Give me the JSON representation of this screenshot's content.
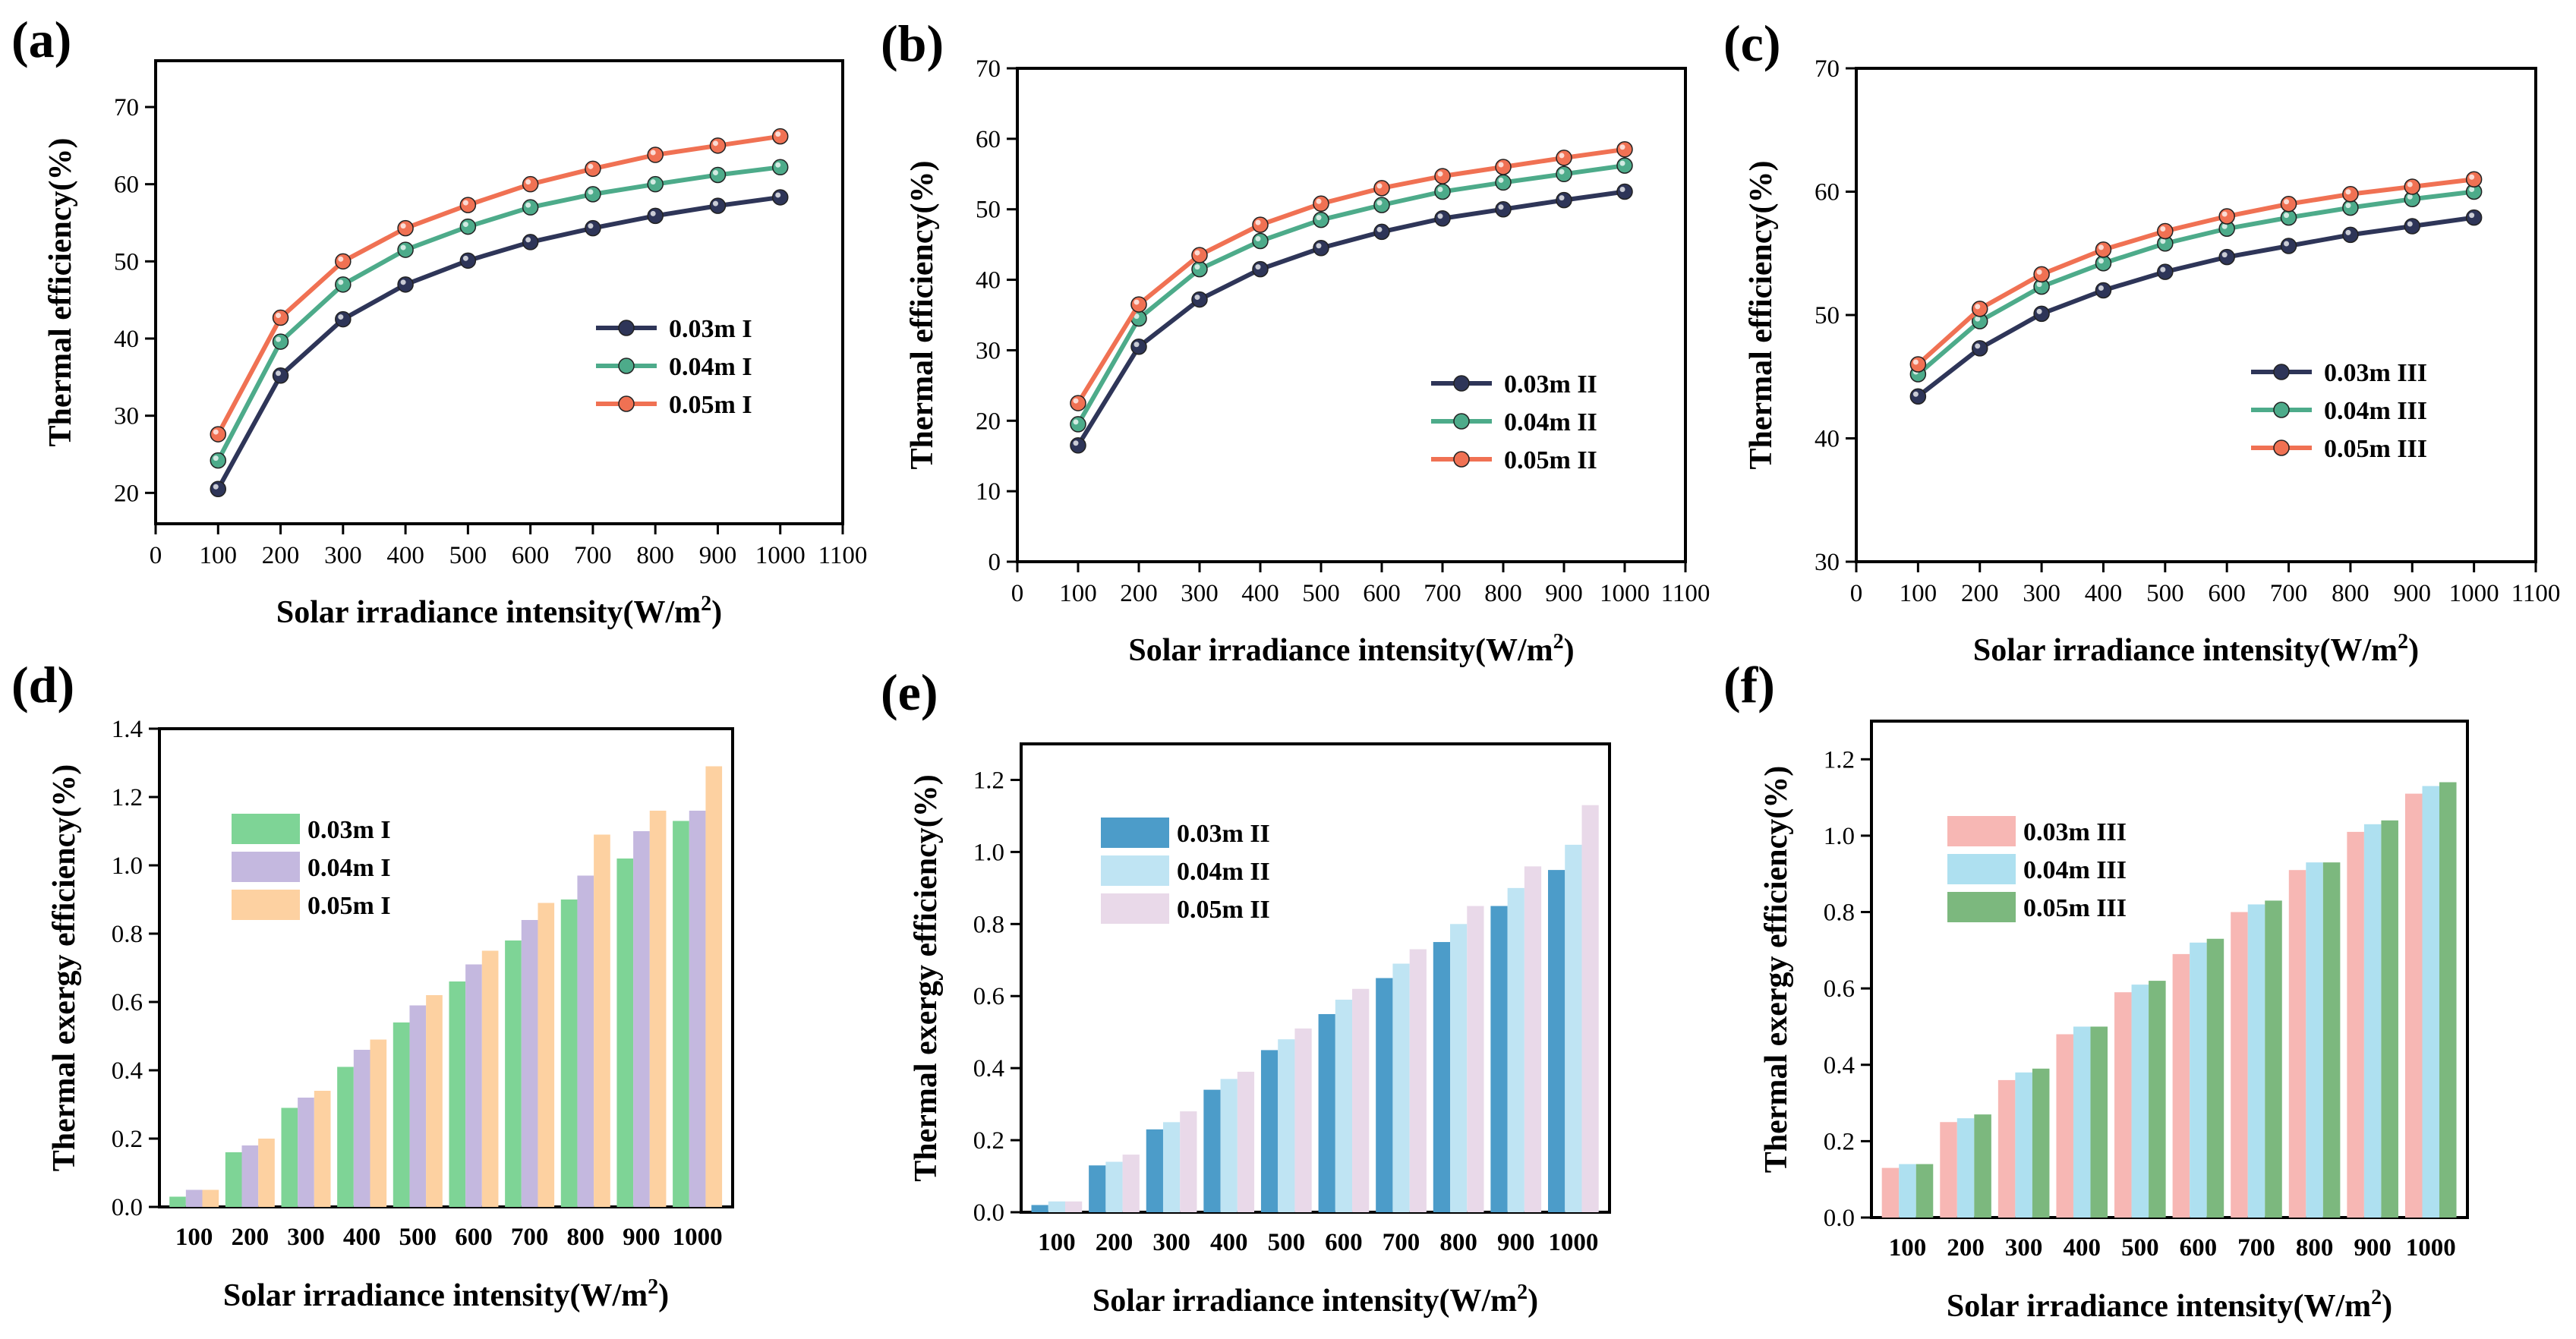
{
  "colors": {
    "line_003": "#2e3558",
    "line_004": "#4dab8a",
    "line_005": "#f07153",
    "bar_I_003": "#7ed496",
    "bar_I_004": "#c4b8df",
    "bar_I_005": "#fdd1a1",
    "bar_II_003": "#4c9cc9",
    "bar_II_004": "#bfe4f3",
    "bar_II_005": "#e9d9e9",
    "bar_III_003": "#f7b7b4",
    "bar_III_004": "#aee0f0",
    "bar_III_005": "#7cb87e"
  },
  "chart_data": [
    {
      "panel": "(a)",
      "type": "line",
      "xlabel": "Solar irradiance intensity(W/m",
      "xlabel_sup": "2",
      "xlabel_end": ")",
      "ylabel": "Thermal efficiency(%)",
      "xlim": [
        0,
        1100
      ],
      "ylim": [
        16,
        76
      ],
      "xticks": [
        0,
        100,
        200,
        300,
        400,
        500,
        600,
        700,
        800,
        900,
        1000,
        1100
      ],
      "yticks": [
        20,
        30,
        40,
        50,
        60,
        70
      ],
      "x": [
        100,
        200,
        300,
        400,
        500,
        600,
        700,
        800,
        900,
        1000
      ],
      "series": [
        {
          "name": "0.03m I",
          "color_key": "line_003",
          "values": [
            20.5,
            35.2,
            42.5,
            47.0,
            50.1,
            52.5,
            54.3,
            55.9,
            57.2,
            58.3
          ]
        },
        {
          "name": "0.04m I",
          "color_key": "line_004",
          "values": [
            24.2,
            39.6,
            47.0,
            51.5,
            54.5,
            57.0,
            58.7,
            60.0,
            61.2,
            62.2
          ]
        },
        {
          "name": "0.05m I",
          "color_key": "line_005",
          "values": [
            27.6,
            42.7,
            50.0,
            54.3,
            57.3,
            60.0,
            62.0,
            63.8,
            65.0,
            66.2
          ]
        }
      ]
    },
    {
      "panel": "(b)",
      "type": "line",
      "xlabel": "Solar irradiance intensity(W/m",
      "xlabel_sup": "2",
      "xlabel_end": ")",
      "ylabel": "Thermal efficiency(%)",
      "xlim": [
        0,
        1100
      ],
      "ylim": [
        0,
        70
      ],
      "xticks": [
        0,
        100,
        200,
        300,
        400,
        500,
        600,
        700,
        800,
        900,
        1000,
        1100
      ],
      "yticks": [
        0,
        10,
        20,
        30,
        40,
        50,
        60,
        70
      ],
      "x": [
        100,
        200,
        300,
        400,
        500,
        600,
        700,
        800,
        900,
        1000
      ],
      "series": [
        {
          "name": "0.03m II",
          "color_key": "line_003",
          "values": [
            16.5,
            30.5,
            37.2,
            41.5,
            44.5,
            46.8,
            48.7,
            50.0,
            51.3,
            52.5
          ]
        },
        {
          "name": "0.04m II",
          "color_key": "line_004",
          "values": [
            19.5,
            34.5,
            41.5,
            45.5,
            48.5,
            50.6,
            52.5,
            53.8,
            55.0,
            56.2
          ]
        },
        {
          "name": "0.05m II",
          "color_key": "line_005",
          "values": [
            22.5,
            36.5,
            43.5,
            47.8,
            50.8,
            53.0,
            54.7,
            56.0,
            57.3,
            58.5
          ]
        }
      ]
    },
    {
      "panel": "(c)",
      "type": "line",
      "xlabel": "Solar irradiance intensity(W/m",
      "xlabel_sup": "2",
      "xlabel_end": ")",
      "ylabel": "Thermal efficiency(%)",
      "xlim": [
        0,
        1100
      ],
      "ylim": [
        30,
        70
      ],
      "xticks": [
        0,
        100,
        200,
        300,
        400,
        500,
        600,
        700,
        800,
        900,
        1000,
        1100
      ],
      "yticks": [
        30,
        40,
        50,
        60,
        70
      ],
      "x": [
        100,
        200,
        300,
        400,
        500,
        600,
        700,
        800,
        900,
        1000
      ],
      "series": [
        {
          "name": "0.03m III",
          "color_key": "line_003",
          "values": [
            43.4,
            47.3,
            50.1,
            52.0,
            53.5,
            54.7,
            55.6,
            56.5,
            57.2,
            57.9
          ]
        },
        {
          "name": "0.04m III",
          "color_key": "line_004",
          "values": [
            45.2,
            49.5,
            52.3,
            54.2,
            55.8,
            57.0,
            57.9,
            58.7,
            59.4,
            60.0
          ]
        },
        {
          "name": "0.05m III",
          "color_key": "line_005",
          "values": [
            46.0,
            50.5,
            53.3,
            55.3,
            56.8,
            58.0,
            59.0,
            59.8,
            60.4,
            61.0
          ]
        }
      ]
    },
    {
      "panel": "(d)",
      "type": "bar",
      "xlabel": "Solar irradiance intensity(W/m",
      "xlabel_sup": "2",
      "xlabel_end": ")",
      "ylabel": "Thermal exergy efficiency(%)",
      "ylim": [
        0,
        1.4
      ],
      "yticks": [
        "0.0",
        "0.2",
        "0.4",
        "0.6",
        "0.8",
        "1.0",
        "1.2",
        "1.4"
      ],
      "categories": [
        "100",
        "200",
        "300",
        "400",
        "500",
        "600",
        "700",
        "800",
        "900",
        "1000"
      ],
      "series": [
        {
          "name": "0.03m I",
          "color_key": "bar_I_003",
          "values": [
            0.03,
            0.16,
            0.29,
            0.41,
            0.54,
            0.66,
            0.78,
            0.9,
            1.02,
            1.13
          ]
        },
        {
          "name": "0.04m I",
          "color_key": "bar_I_004",
          "values": [
            0.05,
            0.18,
            0.32,
            0.46,
            0.59,
            0.71,
            0.84,
            0.97,
            1.1,
            1.16
          ]
        },
        {
          "name": "0.05m I",
          "color_key": "bar_I_005",
          "values": [
            0.05,
            0.2,
            0.34,
            0.49,
            0.62,
            0.75,
            0.89,
            1.09,
            1.16,
            1.29
          ]
        }
      ]
    },
    {
      "panel": "(e)",
      "type": "bar",
      "xlabel": "Solar irradiance intensity(W/m",
      "xlabel_sup": "2",
      "xlabel_end": ")",
      "ylabel": "Thermal exergy efficiency(%)",
      "ylim": [
        0,
        1.3
      ],
      "yticks": [
        "0.0",
        "0.2",
        "0.4",
        "0.6",
        "0.8",
        "1.0",
        "1.2"
      ],
      "categories": [
        "100",
        "200",
        "300",
        "400",
        "500",
        "600",
        "700",
        "800",
        "900",
        "1000"
      ],
      "series": [
        {
          "name": "0.03m II",
          "color_key": "bar_II_003",
          "values": [
            0.02,
            0.13,
            0.23,
            0.34,
            0.45,
            0.55,
            0.65,
            0.75,
            0.85,
            0.95
          ]
        },
        {
          "name": "0.04m II",
          "color_key": "bar_II_004",
          "values": [
            0.03,
            0.14,
            0.25,
            0.37,
            0.48,
            0.59,
            0.69,
            0.8,
            0.9,
            1.02
          ]
        },
        {
          "name": "0.05m II",
          "color_key": "bar_II_005",
          "values": [
            0.03,
            0.16,
            0.28,
            0.39,
            0.51,
            0.62,
            0.73,
            0.85,
            0.96,
            1.13
          ]
        }
      ]
    },
    {
      "panel": "(f)",
      "type": "bar",
      "xlabel": "Solar irradiance intensity(W/m",
      "xlabel_sup": "2",
      "xlabel_end": ")",
      "ylabel": "Thermal exergy efficiency(%)",
      "ylim": [
        0,
        1.3
      ],
      "yticks": [
        "0.0",
        "0.2",
        "0.4",
        "0.6",
        "0.8",
        "1.0",
        "1.2"
      ],
      "categories": [
        "100",
        "200",
        "300",
        "400",
        "500",
        "600",
        "700",
        "800",
        "900",
        "1000"
      ],
      "series": [
        {
          "name": "0.03m III",
          "color_key": "bar_III_003",
          "values": [
            0.13,
            0.25,
            0.36,
            0.48,
            0.59,
            0.69,
            0.8,
            0.91,
            1.01,
            1.11
          ]
        },
        {
          "name": "0.04m III",
          "color_key": "bar_III_004",
          "values": [
            0.14,
            0.26,
            0.38,
            0.5,
            0.61,
            0.72,
            0.82,
            0.93,
            1.03,
            1.13
          ]
        },
        {
          "name": "0.05m III",
          "color_key": "bar_III_005",
          "values": [
            0.14,
            0.27,
            0.39,
            0.5,
            0.62,
            0.73,
            0.83,
            0.93,
            1.04,
            1.14
          ]
        }
      ]
    }
  ]
}
